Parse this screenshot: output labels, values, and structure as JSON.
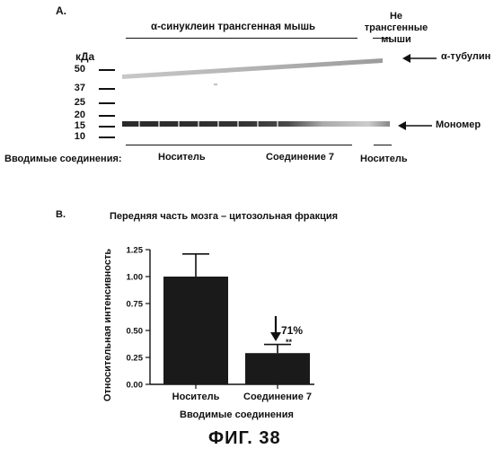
{
  "panel_a": {
    "letter": "A.",
    "group_label_tg": "α-синуклеин трансгенная мышь",
    "group_label_ntg": "Не трансгенные мыши",
    "kda_label": "кДа",
    "mw_markers": [
      "50",
      "37",
      "25",
      "20",
      "15",
      "10"
    ],
    "band_tubulin": "α-тубулин",
    "band_monomer": "Мономер",
    "compounds_label": "Вводимые соединения:",
    "lane_carrier": "Носитель",
    "lane_compound7": "Соединение 7",
    "lane_ntg_carrier": "Носитель"
  },
  "panel_b": {
    "letter": "B.",
    "title": "Передняя часть мозга – цитозольная фракция",
    "ylabel": "Относительная интенсивность",
    "xlabel": "Вводимые соединения",
    "annotation_pct": "71%",
    "annotation_sig": "**"
  },
  "chart_data": {
    "type": "bar",
    "categories": [
      "Носитель",
      "Соединение 7"
    ],
    "values": [
      1.0,
      0.29
    ],
    "errors": [
      0.21,
      0.08
    ],
    "ylim": [
      0,
      1.25
    ],
    "yticks": [
      "0.00",
      "0.25",
      "0.50",
      "0.75",
      "1.00",
      "1.25"
    ],
    "title": "Передняя часть мозга – цитозольная фракция",
    "xlabel": "Вводимые соединения",
    "ylabel": "Относительная интенсивность",
    "bar_color": "#1a1a1a"
  },
  "figure_caption": "ФИГ. 38"
}
